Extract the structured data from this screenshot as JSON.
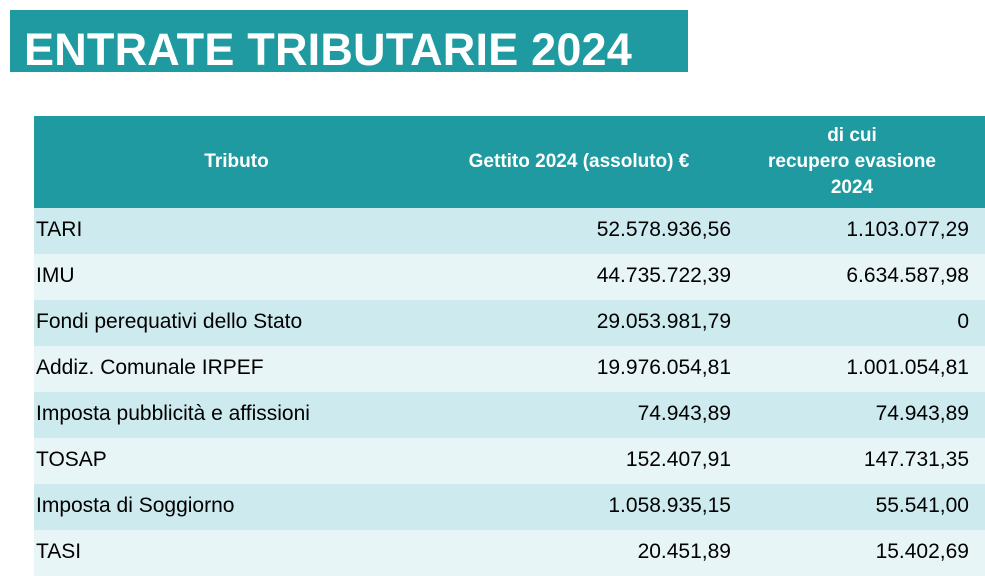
{
  "title": "ENTRATE TRIBUTARIE 2024",
  "table": {
    "headers": {
      "tributo": "Tributo",
      "gettito": "Gettito 2024 (assoluto) €",
      "recupero_line1": "di cui",
      "recupero_line2": "recupero evasione",
      "recupero_line3": "2024"
    },
    "rows": [
      {
        "tributo": "TARI",
        "gettito": "52.578.936,56",
        "recupero": "1.103.077,29"
      },
      {
        "tributo": "IMU",
        "gettito": "44.735.722,39",
        "recupero": "6.634.587,98"
      },
      {
        "tributo": "Fondi perequativi dello Stato",
        "gettito": "29.053.981,79",
        "recupero": "0"
      },
      {
        "tributo": "Addiz. Comunale IRPEF",
        "gettito": "19.976.054,81",
        "recupero": "1.001.054,81"
      },
      {
        "tributo": "Imposta pubblicità e affissioni",
        "gettito": "74.943,89",
        "recupero": "74.943,89"
      },
      {
        "tributo": "TOSAP",
        "gettito": "152.407,91",
        "recupero": "147.731,35"
      },
      {
        "tributo": "Imposta di Soggiorno",
        "gettito": "1.058.935,15",
        "recupero": "55.541,00"
      },
      {
        "tributo": "TASI",
        "gettito": "20.451,89",
        "recupero": "15.402,69"
      }
    ]
  },
  "colors": {
    "accent": "#1e9aa0",
    "row_odd": "#cdeaee",
    "row_even": "#e8f5f7"
  }
}
